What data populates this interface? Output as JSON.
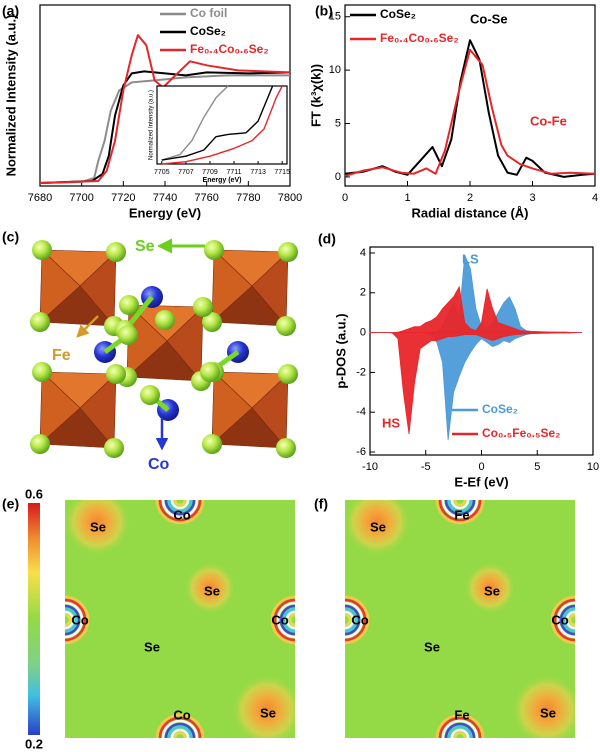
{
  "chart_data": [
    {
      "type": "line",
      "panel": "(a)",
      "xlabel": "Energy (eV)",
      "ylabel": "Normalized Intensity (a.u.)",
      "xlim": [
        7680,
        7800
      ],
      "xticks": [
        7680,
        7700,
        7720,
        7740,
        7760,
        7780,
        7800
      ],
      "ylim": [
        0,
        1.8
      ],
      "legend": "upper right",
      "series": [
        {
          "name": "Co foil",
          "color": "#8c8c8c",
          "x": [
            7680,
            7700,
            7706,
            7708,
            7711,
            7714,
            7718,
            7724,
            7735,
            7750,
            7770,
            7800
          ],
          "values": [
            0.03,
            0.04,
            0.08,
            0.25,
            0.45,
            0.75,
            0.95,
            1.03,
            1.05,
            1.08,
            1.1,
            1.1
          ]
        },
        {
          "name": "CoSe₂",
          "color": "#000000",
          "x": [
            7680,
            7705,
            7710,
            7713,
            7716,
            7720,
            7724,
            7730,
            7740,
            7750,
            7760,
            7780,
            7800
          ],
          "values": [
            0.03,
            0.05,
            0.12,
            0.3,
            0.7,
            1.0,
            1.12,
            1.14,
            1.12,
            1.1,
            1.13,
            1.12,
            1.13
          ]
        },
        {
          "name": "Fe₀.₄Co₀.₆Se₂",
          "color": "#e8262a",
          "x": [
            7680,
            7708,
            7712,
            7716,
            7720,
            7724,
            7727,
            7731,
            7735,
            7739,
            7745,
            7752,
            7760,
            7775,
            7800
          ],
          "values": [
            0.03,
            0.05,
            0.15,
            0.45,
            0.95,
            1.3,
            1.5,
            1.4,
            1.05,
            0.98,
            1.1,
            1.24,
            1.2,
            1.15,
            1.13
          ]
        }
      ],
      "inset": {
        "xlabel": "Energy (eV)",
        "ylabel": "Normalized Intensity (a.u.)",
        "xlim": [
          7704.6,
          7715.4
        ],
        "xticks": [
          7705,
          7707,
          7709,
          7711,
          7713,
          7715
        ],
        "ylim": [
          0,
          1
        ],
        "series": [
          {
            "color": "#8c8c8c",
            "x": [
              7705,
              7706.5,
              7707.5,
              7708.5,
              7709.5,
              7710.5
            ],
            "values": [
              0.05,
              0.12,
              0.3,
              0.6,
              0.85,
              1.0
            ]
          },
          {
            "color": "#000000",
            "x": [
              7705,
              7707,
              7708.5,
              7709.5,
              7710.5,
              7712,
              7713,
              7714.2
            ],
            "values": [
              0.05,
              0.1,
              0.18,
              0.35,
              0.38,
              0.4,
              0.55,
              1.0
            ]
          },
          {
            "color": "#e8262a",
            "x": [
              7705,
              7707,
              7709,
              7711,
              7712.5,
              7713.5,
              7714.5,
              7715
            ],
            "values": [
              0.0,
              0.03,
              0.1,
              0.2,
              0.3,
              0.45,
              0.85,
              1.0
            ]
          }
        ]
      }
    },
    {
      "type": "line",
      "panel": "(b)",
      "xlabel": "Radial distance (Å)",
      "ylabel": "FT (k³χ(k))",
      "xlim": [
        0,
        4
      ],
      "xticks": [
        0,
        1,
        2,
        3,
        4
      ],
      "ylim": [
        -0.85,
        16.1
      ],
      "yticks": [
        0,
        5,
        10,
        15
      ],
      "legend": "upper left",
      "series": [
        {
          "name": "CoSe₂",
          "color": "#000000",
          "x": [
            0,
            0.3,
            0.6,
            0.8,
            1.0,
            1.2,
            1.4,
            1.55,
            1.7,
            1.85,
            2.0,
            2.15,
            2.3,
            2.45,
            2.6,
            2.75,
            2.9,
            3.0,
            3.2,
            3.5,
            3.8,
            4.0
          ],
          "values": [
            0.3,
            0.5,
            1.0,
            0.5,
            0.2,
            1.5,
            2.8,
            1.0,
            3.5,
            9,
            12.8,
            11,
            6,
            2.0,
            0.4,
            0.2,
            1.8,
            1.5,
            0.4,
            0.0,
            0.2,
            0.3
          ]
        },
        {
          "name": "Fe₀.₄Co₀.₆Se₂",
          "color": "#e8262a",
          "x": [
            0,
            0.3,
            0.6,
            0.9,
            1.1,
            1.3,
            1.45,
            1.6,
            1.8,
            2.0,
            2.2,
            2.35,
            2.5,
            2.6,
            2.8,
            3.0,
            3.3,
            3.6,
            4.0
          ],
          "values": [
            0.1,
            0.6,
            0.9,
            0.4,
            0.3,
            0.8,
            0.3,
            2.5,
            7.5,
            11.9,
            10.5,
            6.5,
            3.0,
            2.0,
            1.2,
            0.8,
            0.3,
            0.4,
            0.3
          ]
        }
      ],
      "annotations": [
        {
          "text": "Co-Se",
          "color": "#000000"
        },
        {
          "text": "Co-Fe",
          "color": "#e8262a"
        }
      ]
    },
    {
      "type": "area",
      "panel": "(d)",
      "xlabel": "E-Ef (eV)",
      "ylabel": "p-DOS (a.u.)",
      "xlim": [
        -10,
        10
      ],
      "xticks": [
        -10,
        -5,
        0,
        5,
        10
      ],
      "ylim": [
        -6.15,
        4.3
      ],
      "yticks": [
        -6,
        -4,
        -2,
        0,
        2,
        4
      ],
      "legend": "lower right",
      "x": [
        -10,
        -9.5,
        -9,
        -8.5,
        -8,
        -7.5,
        -7,
        -6.5,
        -6,
        -5.5,
        -5,
        -4.5,
        -4,
        -3.5,
        -3,
        -2.5,
        -2,
        -1.5,
        -1,
        -0.5,
        0,
        0.5,
        1,
        1.5,
        2,
        2.5,
        3,
        3.5,
        4,
        4.5,
        5,
        5.5,
        6,
        6.5,
        7,
        7.5,
        8,
        8.5,
        9
      ],
      "series": [
        {
          "name": "CoSe₂",
          "color": "#4c9ad8",
          "up": [
            0,
            0,
            0,
            0,
            0,
            0,
            0,
            0,
            0,
            0,
            0,
            0.02,
            0.05,
            0.3,
            1.0,
            1.5,
            0.8,
            3.9,
            3.2,
            1.2,
            0.3,
            0.2,
            0.5,
            1.0,
            1.5,
            1.8,
            1.2,
            0.3,
            0.1,
            0.05,
            0.05,
            0.03,
            0.03,
            0.02,
            0.02,
            0.02,
            0.01,
            0,
            0
          ],
          "down": [
            0,
            0,
            0,
            0,
            0,
            0,
            0,
            0,
            0,
            0,
            -0.02,
            -0.1,
            -0.5,
            -1.5,
            -5.4,
            -3,
            -2.2,
            -1.5,
            -1,
            -0.6,
            -0.3,
            -0.5,
            -0.7,
            -0.6,
            -0.4,
            -0.5,
            -0.3,
            -0.2,
            -0.1,
            -0.05,
            -0.05,
            -0.03,
            -0.03,
            -0.02,
            -0.02,
            -0.02,
            -0.01,
            0,
            0
          ]
        },
        {
          "name": "Co₀.₅Fe₀.₅Se₂",
          "color": "#e8262a",
          "up": [
            0,
            0,
            0,
            0,
            0,
            0.02,
            0.1,
            0.2,
            0.3,
            0.3,
            0.5,
            0.6,
            0.8,
            1.2,
            1.5,
            1.8,
            2.3,
            0.5,
            0.2,
            0.1,
            0.5,
            2.2,
            1.2,
            0.5,
            0.4,
            0.3,
            0.2,
            0.1,
            0.08,
            0.06,
            0.05,
            0.04,
            0.03,
            0.03,
            0.02,
            0.02,
            0.01,
            0,
            0
          ],
          "down": [
            0,
            0,
            0,
            0,
            -0.02,
            -0.3,
            -3,
            -5.1,
            -2.5,
            -0.8,
            -0.6,
            -0.4,
            -0.4,
            -0.3,
            -0.2,
            -0.2,
            -0.15,
            -0.1,
            -0.1,
            -0.1,
            -0.2,
            -0.3,
            -0.4,
            -0.3,
            -0.2,
            -0.15,
            -0.1,
            -0.08,
            -0.06,
            -0.05,
            -0.04,
            -0.03,
            -0.03,
            -0.02,
            -0.02,
            -0.01,
            -0.01,
            0,
            0
          ]
        }
      ],
      "annotations": [
        {
          "text": "LS",
          "color": "#4c9ad8"
        },
        {
          "text": "HS",
          "color": "#e8262a"
        }
      ]
    }
  ],
  "structure": {
    "panel": "(c)",
    "labels": [
      "Se",
      "Fe",
      "Co"
    ]
  },
  "colorbar": {
    "lim": [
      0.2,
      0.6
    ],
    "ticks": [
      0.2,
      0.6
    ]
  },
  "maps": [
    {
      "panel": "(e)",
      "labels": [
        "Se",
        "Co",
        "Se",
        "Co",
        "Co",
        "Se",
        "Co",
        "Se"
      ]
    },
    {
      "panel": "(f)",
      "labels": [
        "Se",
        "Fe",
        "Se",
        "Co",
        "Co",
        "Se",
        "Fe",
        "Se"
      ]
    }
  ]
}
